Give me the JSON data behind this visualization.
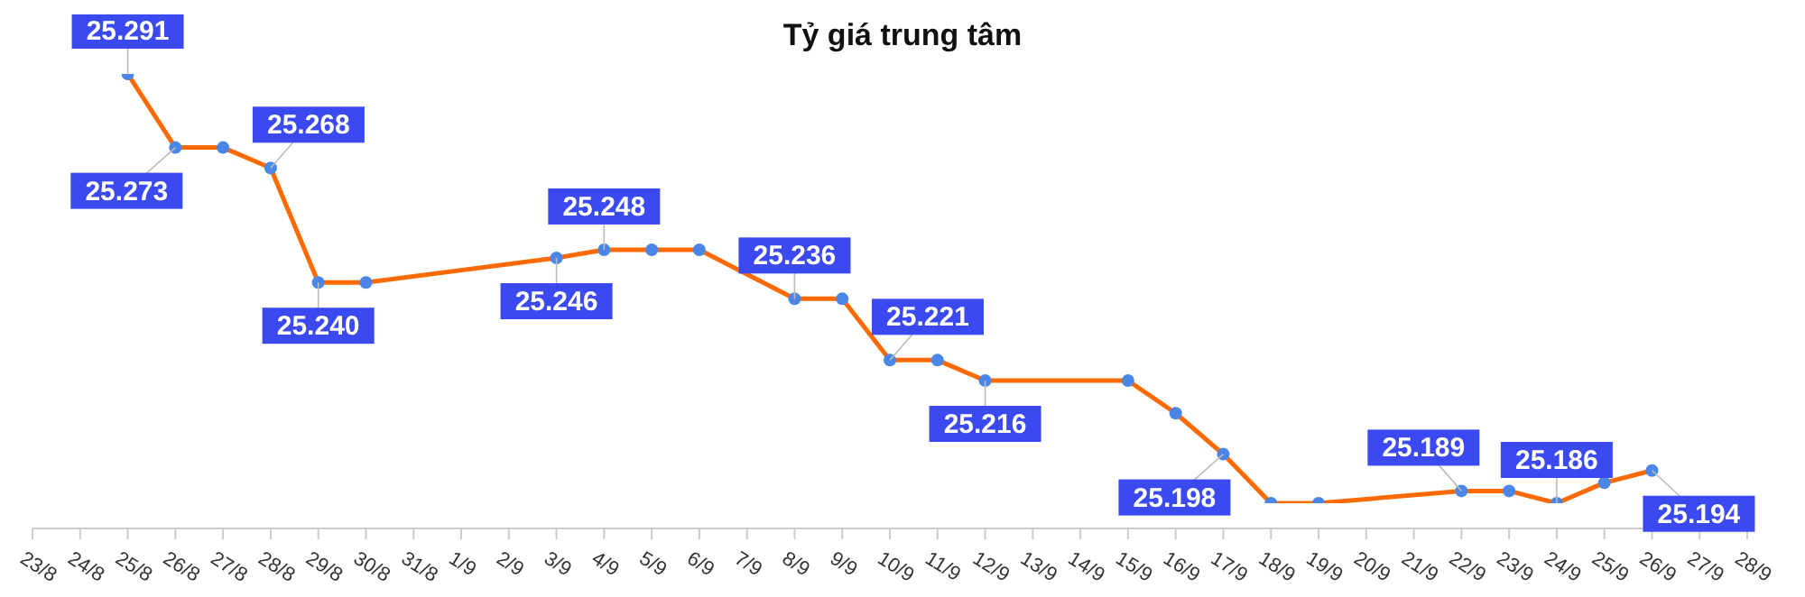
{
  "chart_data": {
    "type": "line",
    "title": "Tỷ giá trung tâm",
    "categories": [
      "23/8",
      "24/8",
      "25/8",
      "26/8",
      "27/8",
      "28/8",
      "29/8",
      "30/8",
      "31/8",
      "1/9",
      "2/9",
      "3/9",
      "4/9",
      "5/9",
      "6/9",
      "7/9",
      "8/9",
      "9/9",
      "10/9",
      "11/9",
      "12/9",
      "13/9",
      "14/9",
      "15/9",
      "16/9",
      "17/9",
      "18/9",
      "19/9",
      "20/9",
      "21/9",
      "22/9",
      "23/9",
      "24/9",
      "25/9",
      "26/9",
      "27/9",
      "28/9"
    ],
    "series": [
      {
        "color": "#ff6a00",
        "values": [
          null,
          null,
          25.291,
          25.273,
          25.273,
          25.268,
          25.24,
          25.24,
          null,
          null,
          null,
          25.246,
          25.248,
          25.248,
          25.248,
          null,
          25.236,
          25.236,
          25.221,
          25.221,
          25.216,
          null,
          null,
          25.216,
          25.208,
          25.198,
          25.186,
          25.186,
          null,
          null,
          25.189,
          25.189,
          25.186,
          25.191,
          25.194,
          null,
          null
        ],
        "value_labels": [
          null,
          null,
          "25.291",
          "25.273",
          null,
          "25.268",
          "25.240",
          null,
          null,
          null,
          null,
          "25.246",
          "25.248",
          null,
          null,
          null,
          "25.236",
          null,
          "25.221",
          null,
          "25.216",
          null,
          null,
          null,
          null,
          "25.198",
          null,
          null,
          null,
          null,
          "25.189",
          null,
          "25.186",
          null,
          "25.194",
          null,
          null
        ]
      }
    ],
    "marker": "circle",
    "line_style": "solid",
    "tick_labels": "x"
  }
}
